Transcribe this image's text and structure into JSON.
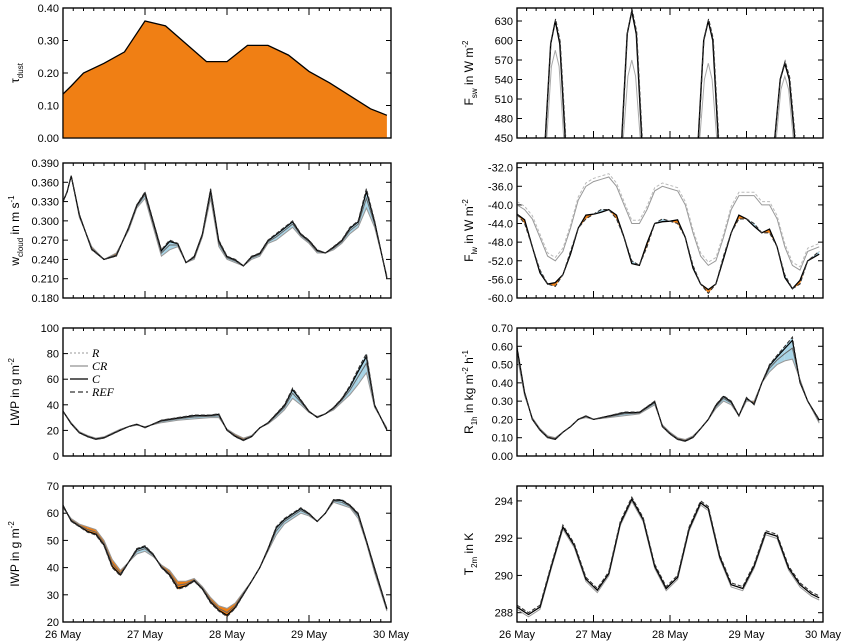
{
  "colors": {
    "warm": "#f07f14",
    "cool": "#a8d4e6",
    "ref": "#222222",
    "r": "#9a9a9a",
    "cr": "#777777",
    "c": "#000000"
  },
  "x_ticks": [
    "26 May",
    "27 May",
    "28 May",
    "29 May",
    "30 May"
  ],
  "legend": [
    "R",
    "CR",
    "C",
    "REF"
  ],
  "chart_data": [
    {
      "type": "area",
      "panel": "a",
      "ylabel_main": "τ",
      "ylabel_sub": "dust",
      "ylim": [
        0,
        0.4
      ],
      "yticks": [
        "0.00",
        "0.10",
        "0.20",
        "0.30",
        "0.40"
      ],
      "x": [
        0,
        0.1,
        0.25,
        0.5,
        0.75,
        1,
        1.25,
        1.5,
        1.75,
        2,
        2.25,
        2.5,
        2.75,
        3,
        3.25,
        3.5,
        3.75,
        3.95
      ],
      "values": [
        0.135,
        0.16,
        0.2,
        0.23,
        0.265,
        0.36,
        0.345,
        0.29,
        0.235,
        0.235,
        0.285,
        0.285,
        0.255,
        0.205,
        0.17,
        0.13,
        0.09,
        0.07
      ]
    },
    {
      "type": "line",
      "panel": "b",
      "ylabel_main": "F",
      "ylabel_sub": "sw",
      "ylabel_rest": " in W m",
      "ylabel_sup": "-2",
      "ylim": [
        450,
        650
      ],
      "yticks": [
        "450",
        "480",
        "510",
        "540",
        "570",
        "600",
        "630"
      ],
      "series": [
        {
          "values": [
            [
              0.37,
              450
            ],
            [
              0.44,
              595
            ],
            [
              0.5,
              630
            ],
            [
              0.56,
              595
            ],
            [
              0.63,
              450
            ],
            [
              1.37,
              450
            ],
            [
              1.44,
              610
            ],
            [
              1.5,
              645
            ],
            [
              1.56,
              610
            ],
            [
              1.63,
              450
            ],
            [
              2.37,
              450
            ],
            [
              2.44,
              600
            ],
            [
              2.5,
              630
            ],
            [
              2.56,
              600
            ],
            [
              2.63,
              450
            ],
            [
              3.37,
              450
            ],
            [
              3.44,
              540
            ],
            [
              3.5,
              565
            ],
            [
              3.56,
              540
            ],
            [
              3.63,
              450
            ]
          ]
        },
        {
          "values": [
            [
              0.39,
              450
            ],
            [
              0.45,
              560
            ],
            [
              0.5,
              585
            ],
            [
              0.55,
              560
            ],
            [
              0.61,
              450
            ],
            [
              1.39,
              450
            ],
            [
              1.45,
              545
            ],
            [
              1.5,
              570
            ],
            [
              1.55,
              545
            ],
            [
              1.61,
              450
            ],
            [
              2.39,
              450
            ],
            [
              2.45,
              540
            ],
            [
              2.5,
              565
            ],
            [
              2.55,
              540
            ],
            [
              2.61,
              450
            ],
            [
              3.39,
              450
            ],
            [
              3.45,
              525
            ],
            [
              3.5,
              545
            ],
            [
              3.55,
              525
            ],
            [
              3.61,
              450
            ]
          ]
        }
      ]
    },
    {
      "type": "line",
      "panel": "c",
      "ylabel_main": "w",
      "ylabel_sub": "cloud",
      "ylabel_rest": " in m s",
      "ylabel_sup": "-1",
      "ylim": [
        0.18,
        0.39
      ],
      "yticks": [
        "0.180",
        "0.210",
        "0.240",
        "0.270",
        "0.300",
        "0.330",
        "0.360",
        "0.390"
      ],
      "x": [
        0,
        0.05,
        0.1,
        0.2,
        0.35,
        0.5,
        0.65,
        0.8,
        0.9,
        1.0,
        1.1,
        1.2,
        1.3,
        1.4,
        1.5,
        1.6,
        1.7,
        1.8,
        1.9,
        2.0,
        2.1,
        2.2,
        2.3,
        2.4,
        2.5,
        2.6,
        2.7,
        2.8,
        2.9,
        3.0,
        3.1,
        3.2,
        3.3,
        3.4,
        3.5,
        3.6,
        3.7,
        3.8,
        3.95
      ],
      "series": [
        {
          "name": "REF",
          "values": [
            0.33,
            0.345,
            0.37,
            0.31,
            0.255,
            0.24,
            0.245,
            0.29,
            0.325,
            0.345,
            0.3,
            0.255,
            0.27,
            0.265,
            0.235,
            0.245,
            0.28,
            0.35,
            0.27,
            0.245,
            0.24,
            0.23,
            0.245,
            0.25,
            0.27,
            0.28,
            0.29,
            0.3,
            0.28,
            0.27,
            0.255,
            0.25,
            0.26,
            0.27,
            0.29,
            0.3,
            0.35,
            0.3,
            0.21
          ]
        },
        {
          "name": "C",
          "values": [
            0.33,
            0.345,
            0.37,
            0.305,
            0.26,
            0.24,
            0.25,
            0.285,
            0.32,
            0.335,
            0.29,
            0.245,
            0.255,
            0.26,
            0.235,
            0.24,
            0.275,
            0.335,
            0.26,
            0.24,
            0.235,
            0.23,
            0.24,
            0.245,
            0.265,
            0.27,
            0.28,
            0.29,
            0.275,
            0.265,
            0.25,
            0.25,
            0.255,
            0.265,
            0.28,
            0.29,
            0.32,
            0.29,
            0.215
          ]
        },
        {
          "name": "R",
          "values": [
            0.33,
            0.35,
            0.375,
            0.31,
            0.27,
            0.255,
            0.25,
            0.28,
            0.31,
            0.33,
            0.29,
            0.26,
            0.27,
            0.265,
            0.25,
            0.255,
            0.27,
            0.32,
            0.265,
            0.255,
            0.25,
            0.245,
            0.25,
            0.255,
            0.265,
            0.27,
            0.275,
            0.285,
            0.275,
            0.265,
            0.26,
            0.255,
            0.26,
            0.265,
            0.275,
            0.28,
            0.305,
            0.285,
            0.225
          ]
        }
      ]
    },
    {
      "type": "line",
      "panel": "d",
      "ylabel_main": "F",
      "ylabel_sub": "lw",
      "ylabel_rest": " in W m",
      "ylabel_sup": "-2",
      "ylim": [
        -60,
        -31
      ],
      "yticks": [
        "-60.0",
        "-56.0",
        "-52.0",
        "-48.0",
        "-44.0",
        "-40.0",
        "-36.0",
        "-32.0"
      ],
      "x": [
        0,
        0.1,
        0.2,
        0.3,
        0.4,
        0.5,
        0.6,
        0.7,
        0.8,
        0.9,
        1.0,
        1.1,
        1.2,
        1.3,
        1.4,
        1.5,
        1.6,
        1.7,
        1.8,
        1.9,
        2.0,
        2.1,
        2.2,
        2.3,
        2.4,
        2.5,
        2.6,
        2.7,
        2.8,
        2.9,
        3.0,
        3.1,
        3.2,
        3.3,
        3.4,
        3.5,
        3.6,
        3.7,
        3.8,
        3.95
      ],
      "series": [
        {
          "name": "REF",
          "values": [
            -42,
            -44,
            -49,
            -54,
            -57,
            -57.5,
            -55,
            -50,
            -45,
            -43,
            -42,
            -41,
            -41,
            -43,
            -47,
            -52,
            -53,
            -49,
            -44,
            -43,
            -43.5,
            -44,
            -47,
            -53,
            -57,
            -59,
            -57,
            -51,
            -46,
            -43,
            -43,
            -44,
            -46,
            -46,
            -49,
            -55,
            -58,
            -57,
            -52,
            -50
          ]
        },
        {
          "name": "R",
          "values": [
            -40,
            -41,
            -43,
            -47,
            -51,
            -52,
            -50,
            -45,
            -39,
            -36,
            -35,
            -34.5,
            -34,
            -36,
            -40,
            -44,
            -44,
            -41,
            -37,
            -36,
            -36.5,
            -37,
            -40,
            -46,
            -51,
            -53,
            -52,
            -47,
            -41,
            -38,
            -38,
            -38,
            -40,
            -40,
            -43,
            -49,
            -53,
            -54,
            -50,
            -49
          ]
        }
      ]
    },
    {
      "type": "line",
      "panel": "e",
      "ylabel": "LWP in g m",
      "ylabel_sup": "-2",
      "ylim": [
        0,
        100
      ],
      "yticks": [
        "0",
        "20",
        "40",
        "60",
        "80",
        "100"
      ],
      "x": [
        0,
        0.1,
        0.2,
        0.3,
        0.4,
        0.5,
        0.6,
        0.7,
        0.8,
        0.9,
        1.0,
        1.2,
        1.4,
        1.6,
        1.8,
        1.9,
        2.0,
        2.1,
        2.2,
        2.3,
        2.4,
        2.5,
        2.6,
        2.7,
        2.8,
        2.9,
        3.0,
        3.1,
        3.2,
        3.3,
        3.4,
        3.5,
        3.6,
        3.7,
        3.8,
        3.95
      ],
      "series": [
        {
          "name": "REF",
          "values": [
            35,
            25,
            18,
            15,
            13,
            14,
            17,
            20,
            23,
            25,
            22,
            28,
            30,
            32,
            32,
            33,
            20,
            15,
            12,
            15,
            22,
            26,
            33,
            40,
            53,
            44,
            35,
            30,
            33,
            38,
            45,
            55,
            68,
            80,
            40,
            20
          ]
        },
        {
          "name": "R",
          "values": [
            35,
            26,
            19,
            16,
            14,
            15,
            18,
            21,
            23,
            24,
            23,
            26,
            28,
            29,
            30,
            30,
            21,
            17,
            14,
            16,
            22,
            25,
            30,
            36,
            45,
            40,
            34,
            31,
            33,
            36,
            42,
            48,
            56,
            65,
            38,
            22
          ]
        }
      ]
    },
    {
      "type": "line",
      "panel": "f",
      "ylabel_main": "R",
      "ylabel_sub": "1h",
      "ylabel_rest": " in kg m",
      "ylabel_sup": "-2",
      "ylabel_rest2": " h",
      "ylabel_sup2": "-1",
      "ylim": [
        0,
        0.7
      ],
      "yticks": [
        "0.00",
        "0.10",
        "0.20",
        "0.30",
        "0.40",
        "0.50",
        "0.60",
        "0.70"
      ],
      "x": [
        0,
        0.1,
        0.2,
        0.3,
        0.4,
        0.5,
        0.6,
        0.7,
        0.8,
        0.9,
        1.0,
        1.2,
        1.4,
        1.6,
        1.8,
        1.9,
        2.0,
        2.1,
        2.2,
        2.3,
        2.4,
        2.5,
        2.6,
        2.7,
        2.8,
        2.9,
        3.0,
        3.1,
        3.2,
        3.3,
        3.4,
        3.5,
        3.6,
        3.7,
        3.8,
        3.95
      ],
      "series": [
        {
          "name": "REF",
          "values": [
            0.6,
            0.35,
            0.2,
            0.14,
            0.1,
            0.09,
            0.13,
            0.16,
            0.2,
            0.22,
            0.2,
            0.22,
            0.24,
            0.24,
            0.3,
            0.16,
            0.12,
            0.09,
            0.08,
            0.1,
            0.15,
            0.2,
            0.28,
            0.33,
            0.3,
            0.22,
            0.32,
            0.28,
            0.4,
            0.5,
            0.55,
            0.6,
            0.65,
            0.4,
            0.3,
            0.2
          ]
        },
        {
          "name": "R",
          "values": [
            0.55,
            0.33,
            0.21,
            0.15,
            0.11,
            0.1,
            0.13,
            0.16,
            0.2,
            0.21,
            0.2,
            0.21,
            0.22,
            0.23,
            0.28,
            0.17,
            0.13,
            0.1,
            0.09,
            0.11,
            0.15,
            0.2,
            0.26,
            0.3,
            0.28,
            0.22,
            0.3,
            0.3,
            0.4,
            0.46,
            0.5,
            0.52,
            0.53,
            0.42,
            0.3,
            0.18
          ]
        }
      ]
    },
    {
      "type": "line",
      "panel": "g",
      "ylabel": "IWP in g m",
      "ylabel_sup": "-2",
      "ylim": [
        20,
        70
      ],
      "yticks": [
        "20",
        "30",
        "40",
        "50",
        "60",
        "70"
      ],
      "x": [
        0,
        0.1,
        0.2,
        0.3,
        0.4,
        0.5,
        0.6,
        0.7,
        0.8,
        0.9,
        1.0,
        1.1,
        1.2,
        1.3,
        1.4,
        1.5,
        1.6,
        1.7,
        1.8,
        1.9,
        2.0,
        2.1,
        2.2,
        2.3,
        2.4,
        2.5,
        2.6,
        2.7,
        2.8,
        2.9,
        3.0,
        3.1,
        3.2,
        3.3,
        3.4,
        3.5,
        3.6,
        3.7,
        3.8,
        3.95
      ],
      "series": [
        {
          "name": "REF",
          "values": [
            63,
            57,
            55,
            53,
            52,
            48,
            40,
            37,
            42,
            47,
            48,
            45,
            40,
            37,
            32,
            33,
            35,
            32,
            27,
            24,
            22,
            25,
            30,
            35,
            40,
            47,
            55,
            58,
            60,
            62,
            60,
            57,
            60,
            65,
            65,
            63,
            60,
            50,
            40,
            25
          ]
        },
        {
          "name": "R",
          "values": [
            62,
            58,
            56,
            55,
            54,
            50,
            43,
            39,
            42,
            45,
            46,
            44,
            41,
            39,
            35,
            35,
            36,
            33,
            29,
            26,
            25,
            27,
            31,
            35,
            40,
            46,
            52,
            56,
            58,
            60,
            59,
            57,
            60,
            64,
            63,
            62,
            58,
            49,
            38,
            24
          ]
        }
      ]
    },
    {
      "type": "line",
      "panel": "h",
      "ylabel_main": "T",
      "ylabel_sub": "2m",
      "ylabel_rest": " in K",
      "ylim": [
        287.5,
        294.8
      ],
      "yticks": [
        "288",
        "290",
        "292",
        "294"
      ],
      "x": [
        0,
        0.15,
        0.3,
        0.45,
        0.6,
        0.75,
        0.9,
        1.05,
        1.2,
        1.35,
        1.5,
        1.65,
        1.8,
        1.95,
        2.1,
        2.25,
        2.4,
        2.5,
        2.65,
        2.8,
        2.95,
        3.1,
        3.25,
        3.4,
        3.55,
        3.7,
        3.85,
        3.95
      ],
      "series": [
        {
          "name": "REF",
          "values": [
            288.3,
            287.9,
            288.3,
            290.5,
            292.6,
            291.6,
            289.8,
            289.2,
            290.1,
            292.8,
            294.1,
            293.0,
            290.5,
            289.3,
            289.9,
            292.5,
            293.9,
            293.6,
            291.0,
            289.5,
            289.3,
            290.5,
            292.3,
            292.1,
            290.4,
            289.5,
            289.0,
            288.8
          ]
        }
      ]
    }
  ]
}
